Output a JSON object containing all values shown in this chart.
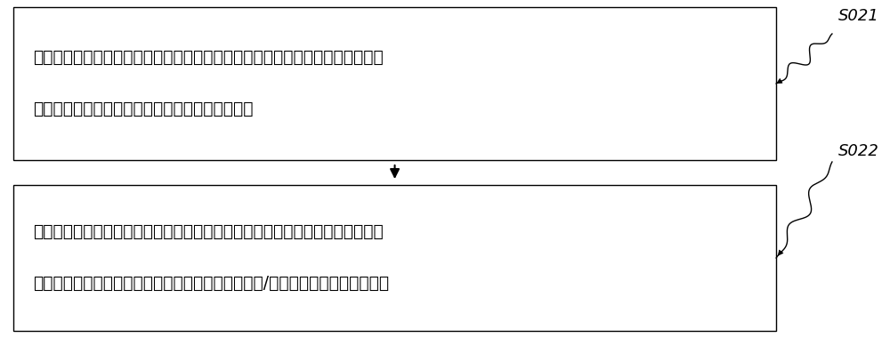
{
  "box1_lines": [
    "接口服务器按照预设时间频率下发实时数据报文至采集设备以获取采集设备的实",
    "时数据，同时，接口服务器记录采集设备响应信息"
  ],
  "box2_lines": [
    "根据接口服务器记录的采集设备响应信息，按照预设条件判断采集设备与接口服",
    "务器的连接情况，且对应生成接口服务器故障告警和/或采集设备故障告警并输出"
  ],
  "label1": "S021",
  "label2": "S022",
  "box_color": "#ffffff",
  "border_color": "#000000",
  "text_color": "#000000",
  "arrow_color": "#000000",
  "background_color": "#ffffff",
  "font_size": 13.5,
  "label_font_size": 13
}
